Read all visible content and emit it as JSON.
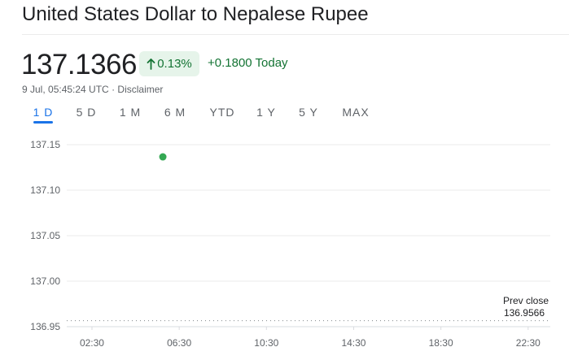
{
  "header": {
    "title": "United States Dollar to Nepalese Rupee"
  },
  "quote": {
    "price": "137.1366",
    "percent_change": "0.13%",
    "change_today": "+0.1800 Today",
    "timestamp": "9 Jul, 05:45:24 UTC",
    "separator": " · ",
    "disclaimer": "Disclaimer",
    "direction_icon": "arrow-up-icon",
    "positive_color": "#137333",
    "positive_bg": "#e6f4ea"
  },
  "tabs": [
    {
      "label": "1 D",
      "active": true
    },
    {
      "label": "5 D",
      "active": false
    },
    {
      "label": "1 M",
      "active": false
    },
    {
      "label": "6 M",
      "active": false
    },
    {
      "label": "YTD",
      "active": false
    },
    {
      "label": "1 Y",
      "active": false
    },
    {
      "label": "5 Y",
      "active": false
    },
    {
      "label": "MAX",
      "active": false
    }
  ],
  "chart_data": {
    "type": "line",
    "y_ticks": [
      "137.15",
      "137.10",
      "137.05",
      "137.00",
      "136.95"
    ],
    "ylim": [
      136.95,
      137.15
    ],
    "x_ticks": [
      "02:30",
      "06:30",
      "10:30",
      "14:30",
      "18:30",
      "22:30"
    ],
    "grid": true,
    "series": [
      {
        "x": [
          "05:45"
        ],
        "y": [
          137.1366
        ],
        "color": "#34a853"
      }
    ],
    "reference_line": {
      "label": "Prev close",
      "value_text": "136.9566",
      "value": 136.9566
    }
  }
}
